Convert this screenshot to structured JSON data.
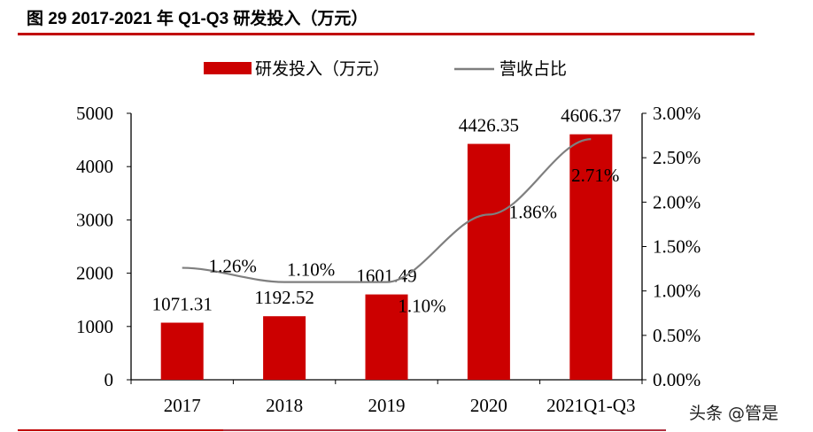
{
  "title": "图 29 2017-2021 年 Q1-Q3 研发投入（万元）",
  "watermark": "头条 @管是",
  "colors": {
    "bar": "#cc0000",
    "line": "#7f7f7f",
    "rule": "#c00000"
  },
  "chart_data": {
    "type": "bar+line",
    "categories": [
      "2017",
      "2018",
      "2019",
      "2020",
      "2021Q1-Q3"
    ],
    "series": [
      {
        "name": "研发投入（万元）",
        "type": "bar",
        "axis": "left",
        "values": [
          1071.31,
          1192.52,
          1601.49,
          4426.35,
          4606.37
        ],
        "labels": [
          "1071.31",
          "1192.52",
          "1601.49",
          "4426.35",
          "4606.37"
        ]
      },
      {
        "name": "营收占比",
        "type": "line",
        "axis": "right",
        "values": [
          1.26,
          1.1,
          1.1,
          1.86,
          2.71
        ],
        "labels": [
          "1.26%",
          "1.10%",
          "1.10%",
          "1.86%",
          "2.71%"
        ]
      }
    ],
    "left_axis": {
      "ylim": [
        0,
        5000
      ],
      "ticks": [
        "0",
        "1000",
        "2000",
        "3000",
        "4000",
        "5000"
      ]
    },
    "right_axis": {
      "ylim": [
        0,
        3
      ],
      "ticks": [
        "0.00%",
        "0.50%",
        "1.00%",
        "1.50%",
        "2.00%",
        "2.50%",
        "3.00%"
      ]
    },
    "legend": "top",
    "grid": false
  }
}
